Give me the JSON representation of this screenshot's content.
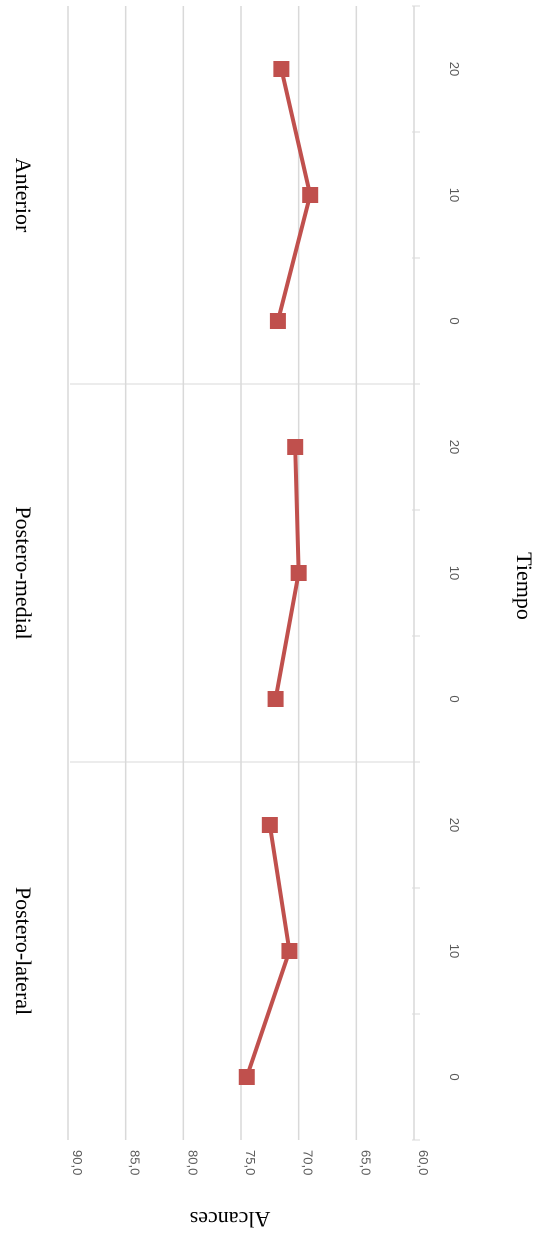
{
  "chart_data": {
    "type": "line",
    "orientation": "rotated 90 degrees clockwise",
    "xlabel": "Tiempo",
    "ylabel": "Alcances",
    "ylim": [
      60,
      90
    ],
    "yticks": [
      "60,0",
      "65,0",
      "70,0",
      "75,0",
      "80,0",
      "85,0",
      "90,0"
    ],
    "x_ticks": [
      "0",
      "10",
      "20"
    ],
    "grid": true,
    "line_color": "#c0504d",
    "marker": "square",
    "panels": [
      {
        "title": "Anterior",
        "x": [
          0,
          10,
          20
        ],
        "values": [
          71.8,
          69.0,
          71.5
        ]
      },
      {
        "title": "Postero-medial",
        "x": [
          0,
          10,
          20
        ],
        "values": [
          72.0,
          70.0,
          70.3
        ]
      },
      {
        "title": "Postero-lateral",
        "x": [
          0,
          10,
          20
        ],
        "values": [
          74.5,
          70.8,
          72.5
        ]
      }
    ]
  }
}
